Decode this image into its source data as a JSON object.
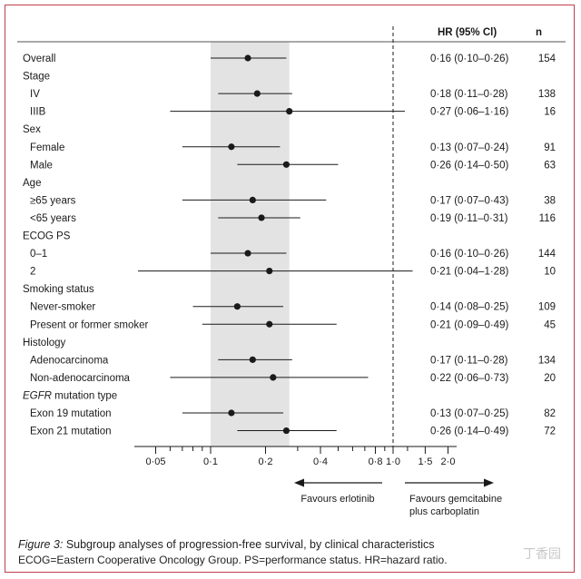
{
  "chart_data": {
    "type": "forest",
    "xscale": "log",
    "xlim": [
      0.035,
      2.4
    ],
    "shaded_band": [
      0.1,
      0.27
    ],
    "reference_line": 1.0,
    "header": {
      "hr": "HR (95% Cl)",
      "n": "n"
    },
    "xticks": [
      0.05,
      0.1,
      0.2,
      0.4,
      0.8,
      1.0,
      1.5,
      2.0
    ],
    "xtick_labels": [
      "0·05",
      "0·1",
      "0·2",
      "0·4",
      "0·8",
      "1·0",
      "1·5",
      "2·0"
    ],
    "minor_ticks": [
      0.06,
      0.07,
      0.08,
      0.09,
      0.3,
      0.5,
      0.6,
      0.7,
      0.9,
      1.2
    ],
    "favours_left": "Favours erlotinib",
    "favours_right": [
      "Favours gemcitabine",
      "plus carboplatin"
    ],
    "rows": [
      {
        "label": "Overall",
        "indent": false,
        "hr": 0.16,
        "lo": 0.1,
        "hi": 0.26,
        "ci_text": "0·16 (0·10–0·26)",
        "n": "154"
      },
      {
        "label": "Stage",
        "indent": false,
        "header": true
      },
      {
        "label": "IV",
        "indent": true,
        "hr": 0.18,
        "lo": 0.11,
        "hi": 0.28,
        "ci_text": "0·18 (0·11–0·28)",
        "n": "138"
      },
      {
        "label": "IIIB",
        "indent": true,
        "hr": 0.27,
        "lo": 0.06,
        "hi": 1.16,
        "ci_text": "0·27 (0·06–1·16)",
        "n": "16"
      },
      {
        "label": "Sex",
        "indent": false,
        "header": true
      },
      {
        "label": "Female",
        "indent": true,
        "hr": 0.13,
        "lo": 0.07,
        "hi": 0.24,
        "ci_text": "0·13 (0·07–0·24)",
        "n": "91"
      },
      {
        "label": "Male",
        "indent": true,
        "hr": 0.26,
        "lo": 0.14,
        "hi": 0.5,
        "ci_text": "0·26 (0·14–0·50)",
        "n": "63"
      },
      {
        "label": "Age",
        "indent": false,
        "header": true
      },
      {
        "label": "≥65 years",
        "indent": true,
        "hr": 0.17,
        "lo": 0.07,
        "hi": 0.43,
        "ci_text": "0·17 (0·07–0·43)",
        "n": "38"
      },
      {
        "label": "<65 years",
        "indent": true,
        "hr": 0.19,
        "lo": 0.11,
        "hi": 0.31,
        "ci_text": "0·19 (0·11–0·31)",
        "n": "116"
      },
      {
        "label": "ECOG PS",
        "indent": false,
        "header": true
      },
      {
        "label": "0–1",
        "indent": true,
        "hr": 0.16,
        "lo": 0.1,
        "hi": 0.26,
        "ci_text": "0·16 (0·10–0·26)",
        "n": "144"
      },
      {
        "label": "2",
        "indent": true,
        "hr": 0.21,
        "lo": 0.04,
        "hi": 1.28,
        "ci_text": "0·21 (0·04–1·28)",
        "n": "10"
      },
      {
        "label": "Smoking status",
        "indent": false,
        "header": true
      },
      {
        "label": "Never-smoker",
        "indent": true,
        "hr": 0.14,
        "lo": 0.08,
        "hi": 0.25,
        "ci_text": "0·14 (0·08–0·25)",
        "n": "109"
      },
      {
        "label": "Present or former smoker",
        "indent": true,
        "hr": 0.21,
        "lo": 0.09,
        "hi": 0.49,
        "ci_text": "0·21 (0·09–0·49)",
        "n": "45"
      },
      {
        "label": "Histology",
        "indent": false,
        "header": true
      },
      {
        "label": "Adenocarcinoma",
        "indent": true,
        "hr": 0.17,
        "lo": 0.11,
        "hi": 0.28,
        "ci_text": "0·17 (0·11–0·28)",
        "n": "134"
      },
      {
        "label": "Non-adenocarcinoma",
        "indent": true,
        "hr": 0.22,
        "lo": 0.06,
        "hi": 0.73,
        "ci_text": "0·22 (0·06–0·73)",
        "n": "20"
      },
      {
        "label": "EGFR mutation type",
        "indent": false,
        "header": true,
        "italic_prefix": "EGFR"
      },
      {
        "label": "Exon 19 mutation",
        "indent": true,
        "hr": 0.13,
        "lo": 0.07,
        "hi": 0.25,
        "ci_text": "0·13 (0·07–0·25)",
        "n": "82"
      },
      {
        "label": "Exon 21 mutation",
        "indent": true,
        "hr": 0.26,
        "lo": 0.14,
        "hi": 0.49,
        "ci_text": "0·26 (0·14–0·49)",
        "n": "72"
      }
    ]
  },
  "caption": {
    "figure_label": "Figure 3:",
    "title": " Subgroup analyses of progression-free survival, by clinical characteristics",
    "abbreviations": "ECOG=Eastern Cooperative Oncology Group. PS=performance status. HR=hazard ratio."
  },
  "watermark": "丁香园",
  "colors": {
    "frame": "#c0404c",
    "band": "#e3e3e3",
    "ink": "#1a1a1a",
    "grid_line": "#9a9a9a"
  }
}
